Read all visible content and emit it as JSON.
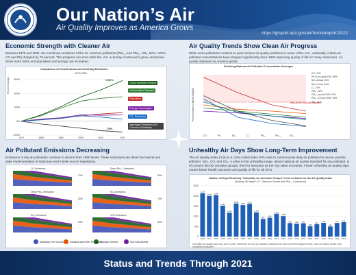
{
  "header": {
    "title": "Our Nation’s Air",
    "subtitle": "Air Quality Improves as America Grows",
    "url": "https://gispub.epa.gov/air/trendsreport/2022"
  },
  "footer": {
    "text": "Status and Trends Through 2021"
  },
  "panel_econ": {
    "title": "Economic Strength with Cleaner Air",
    "text": "Between 1970 and 2021, the combined emissions of the six common pollutants (PM₂.₅ and PM₁₀, SO₂, NOx, VOCs, CO and Pb) dropped by 78 percent. This progress occurred while the U.S. economy continued to grow, Americans drove more miles and population and energy use increased.",
    "chart_title": "Comparison of Growth Areas and Declining Emissions",
    "chart_subtitle": "1970-2021",
    "ylabel": "Percent Change",
    "labels": [
      "Gross Domestic Product",
      "Vehicle Miles Traveled",
      "Population",
      "Energy Consumption",
      "CO₂ Emissions",
      "Aggregate Emissions (Six Common Pollutants)"
    ],
    "label_colors": [
      "#1b5e20",
      "#2e7d32",
      "#c62828",
      "#7b1fa2",
      "#1565c0",
      "#424242"
    ],
    "annotations": [
      "+293%",
      "-78%"
    ]
  },
  "panel_trends": {
    "title": "Air Quality Trends Show Clean Air Progress",
    "text": "While some pollutants continue to pose serious air quality problems in areas of the U.S., nationally, criteria air pollutant concentrations have dropped significantly since 1990 improving quality of life for many Americans. Air quality improves as America grows.",
    "chart_title": "Declining National Air Pollutant Concentration Averages",
    "ylabel": "Percent Above or Below NAAQS",
    "right_labels": [
      "CO -79%",
      "Pb (3-mo avg) 2010: 85%",
      "NO₂ annual -61%",
      "NO₂ 1-hour -54%",
      "O₃ -21%",
      "PM₁₀ -32%",
      "PM₂.₅ annual 2000: 37%",
      "PM₂.₅ 24-hour 2000: 36%",
      "SO₂ -91%"
    ],
    "naaqs_label": "Well Above National Standard",
    "legend": [
      "CO",
      "Pb",
      "NO₂",
      "O₃",
      "PM₁₀",
      "PM₂.₅",
      "SO₂"
    ]
  },
  "panel_emissions": {
    "title": "Air Pollutant Emissions Decreasing",
    "text": "Emissions of key air pollutants continue to decline from 1990 levels. These reductions are driven by federal and state implementation of stationary and mobile source regulations.",
    "charts": [
      {
        "name": "CO Emissions",
        "change": "-70%"
      },
      {
        "name": "Direct PM₂.₅ Emissions",
        "change": "-33%"
      },
      {
        "name": "Direct PM₁₀ Emissions",
        "change": "-36%"
      },
      {
        "name": "NOₓ Emissions",
        "change": "-70%"
      },
      {
        "name": "SO₂ Emissions",
        "change": "-93%"
      },
      {
        "name": "VOC Emissions",
        "change": "-49%"
      }
    ],
    "legend": [
      "Stationary Fuel Combustion",
      "Industrial and Other Processes",
      "Highway Vehicles",
      "Non-Road Mobile"
    ],
    "legend_colors": [
      "#3f51b5",
      "#e65100",
      "#1b5e20",
      "#6a1b9a"
    ]
  },
  "panel_aqi": {
    "title": "Unhealthy Air Days Show Long-Term Improvement",
    "text": "The Air Quality Index (AQI) is a color-coded index EPA uses to communicate daily air pollution for ozone, particle pollution, NO₂, CO, and SO₂. A value in the unhealthy range, above national air quality standard for any pollutant, is of concern first for sensitive groups, then for everyone as the AQI value increases. Fewer unhealthy air quality days means better health outcomes and quality of life for all of us.",
    "chart_title": "Number of Days Reaching \"Unhealthy for Sensitive Groups\" Level or Above on the Air Quality Index",
    "chart_subtitle": "(Among 35 Major U.S. Cities for Ozone and PM₂.₅ Combined)",
    "note": "Unhealthy air quality days vary year to year, influenced not only by pollution emissions but also by meteorological events, such as wildfire smoke, and conditions in weather."
  },
  "chart_data": [
    {
      "type": "line",
      "title": "Comparison of Growth Areas and Declining Emissions",
      "x": [
        1970,
        1980,
        1990,
        2000,
        2010,
        2021
      ],
      "series": [
        {
          "name": "Gross Domestic Product",
          "values": [
            0,
            45,
            105,
            175,
            225,
            293
          ]
        },
        {
          "name": "Vehicle Miles Traveled",
          "values": [
            0,
            40,
            95,
            145,
            165,
            176
          ]
        },
        {
          "name": "Population",
          "values": [
            0,
            12,
            22,
            38,
            52,
            62
          ]
        },
        {
          "name": "Energy Consumption",
          "values": [
            0,
            15,
            25,
            45,
            43,
            45
          ]
        },
        {
          "name": "CO₂ Emissions",
          "values": [
            0,
            10,
            20,
            40,
            30,
            15
          ]
        },
        {
          "name": "Aggregate Emissions (Six Common Pollutants)",
          "values": [
            0,
            -20,
            -35,
            -50,
            -68,
            -78
          ]
        }
      ],
      "xticks": [
        "1970",
        "1980",
        "1990",
        "2000",
        "2010",
        "2021"
      ],
      "yticks": [
        "-100%",
        "0%",
        "100%",
        "200%",
        "300%"
      ]
    },
    {
      "type": "bar",
      "title": "Number of Days Reaching \"Unhealthy for Sensitive Groups\" Level or Above on the Air Quality Index",
      "categories": [
        "2000",
        "2001",
        "2002",
        "2003",
        "2004",
        "2005",
        "2006",
        "2007",
        "2008",
        "2009",
        "2010",
        "2011",
        "2012",
        "2013",
        "2014",
        "2015",
        "2016",
        "2017",
        "2018",
        "2019",
        "2020",
        "2021"
      ],
      "values": [
        2137,
        2004,
        2045,
        1525,
        1181,
        1629,
        1551,
        1612,
        1194,
        866,
        928,
        1123,
        1009,
        665,
        635,
        657,
        508,
        611,
        676,
        496,
        671,
        711
      ],
      "yticks": [
        "0",
        "500",
        "1000",
        "1500",
        "2000",
        "2500"
      ]
    }
  ]
}
